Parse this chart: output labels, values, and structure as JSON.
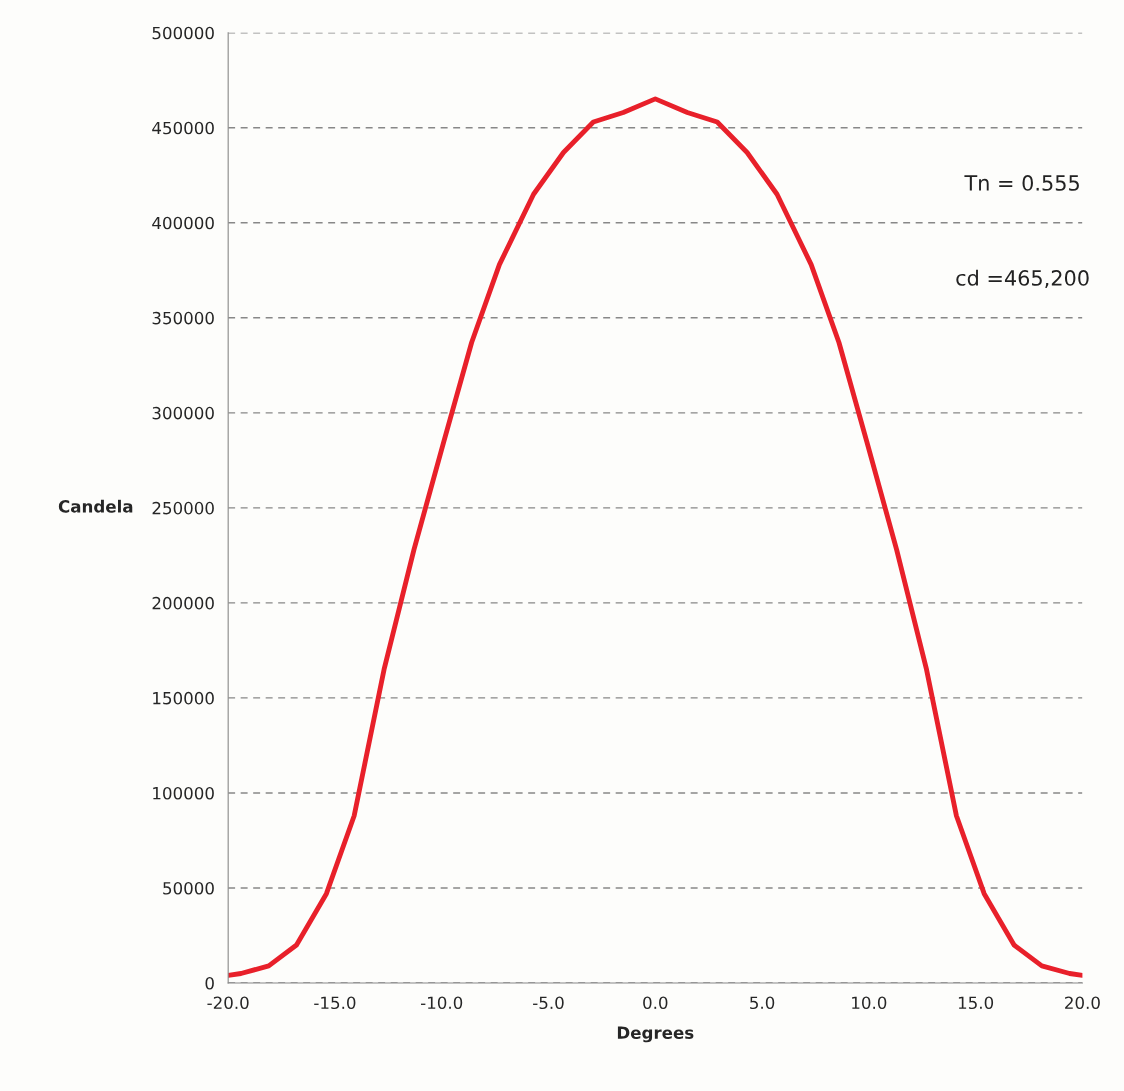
{
  "chart_data": {
    "type": "line",
    "xlabel": "Degrees",
    "ylabel": "Candela",
    "annotations": [
      "Tn = 0.555",
      "cd =465,200"
    ],
    "x": [
      -20,
      -19.4,
      -18.1,
      -16.8,
      -15.4,
      -14.1,
      -12.7,
      -11.3,
      -9.9,
      -8.6,
      -7.3,
      -5.7,
      -4.3,
      -2.9,
      -1.5,
      0,
      1.5,
      2.9,
      4.3,
      5.7,
      7.3,
      8.6,
      9.9,
      11.3,
      12.7,
      14.1,
      15.4,
      16.8,
      18.1,
      19.4,
      20
    ],
    "series": [
      {
        "color": "#e8202a",
        "values": [
          4000,
          5000,
          9000,
          20000,
          47000,
          88000,
          165000,
          228000,
          285000,
          337000,
          378000,
          415000,
          437000,
          453000,
          458000,
          465200,
          458000,
          453000,
          437000,
          415000,
          378000,
          337000,
          285000,
          228000,
          165000,
          88000,
          47000,
          20000,
          9000,
          5000,
          4000
        ]
      }
    ],
    "xlim": [
      -20,
      20
    ],
    "ylim": [
      0,
      500000
    ],
    "xticks": [
      {
        "value": -20,
        "label": "-20.0"
      },
      {
        "value": -15,
        "label": "-15.0"
      },
      {
        "value": -10,
        "label": "-10.0"
      },
      {
        "value": -5,
        "label": "-5.0"
      },
      {
        "value": 0,
        "label": "0.0"
      },
      {
        "value": 5,
        "label": "5.0"
      },
      {
        "value": 10,
        "label": "10.0"
      },
      {
        "value": 15,
        "label": "15.0"
      },
      {
        "value": 20,
        "label": "20.0"
      }
    ],
    "yticks": [
      0,
      50000,
      100000,
      150000,
      200000,
      250000,
      300000,
      350000,
      400000,
      450000,
      500000
    ],
    "grid": "y",
    "legend": false,
    "marker": "none",
    "line_style": "solid"
  }
}
